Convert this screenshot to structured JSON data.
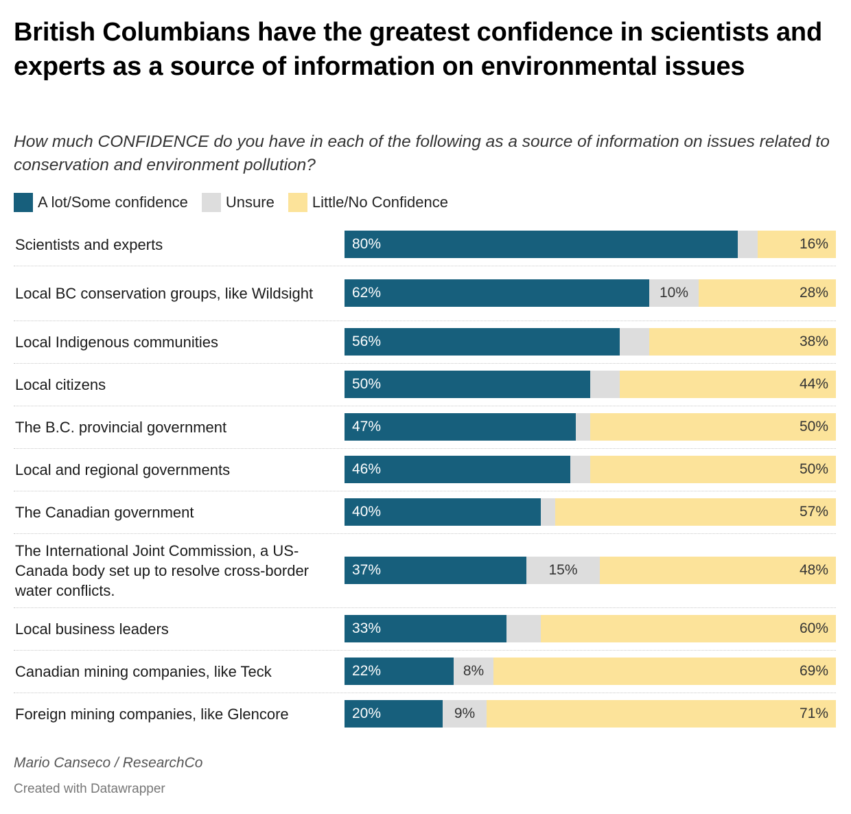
{
  "title": "British Columbians have the greatest confidence in scientists and experts as a source of information on environmental issues",
  "subtitle": "How much CONFIDENCE do you have in each of the following as a source of information on issues related to conservation and environment pollution?",
  "colors": {
    "confidence": "#175f7c",
    "unsure": "#dddddd",
    "no_confidence": "#fce39a"
  },
  "legend": [
    {
      "label": "A lot/Some confidence",
      "color": "#175f7c"
    },
    {
      "label": "Unsure",
      "color": "#dddddd"
    },
    {
      "label": "Little/No Confidence",
      "color": "#fce39a"
    }
  ],
  "source": "Mario Canseco / ResearchCo",
  "credit": "Created with Datawrapper",
  "chart_data": {
    "type": "bar",
    "orientation": "horizontal",
    "stacked": true,
    "xlim": [
      0,
      100
    ],
    "categories": [
      "Scientists and experts",
      "Local BC conservation groups, like Wildsight",
      "Local Indigenous communities",
      "Local citizens",
      "The B.C. provincial government",
      "Local and regional governments",
      "The Canadian government",
      "The International Joint Commission, a US-Canada body set up to resolve cross-border water conflicts.",
      "Local business leaders",
      "Canadian mining companies, like Teck",
      "Foreign mining companies, like Glencore"
    ],
    "series": [
      {
        "name": "A lot/Some confidence",
        "values": [
          80,
          62,
          56,
          50,
          47,
          46,
          40,
          37,
          33,
          22,
          20
        ],
        "labels": [
          "80%",
          "62%",
          "56%",
          "50%",
          "47%",
          "46%",
          "40%",
          "37%",
          "33%",
          "22%",
          "20%"
        ]
      },
      {
        "name": "Unsure",
        "values": [
          4,
          10,
          6,
          6,
          3,
          4,
          3,
          15,
          7,
          8,
          9
        ],
        "labels": [
          "",
          "10%",
          "",
          "",
          "",
          "",
          "",
          "15%",
          "",
          "8%",
          "9%"
        ]
      },
      {
        "name": "Little/No Confidence",
        "values": [
          16,
          28,
          38,
          44,
          50,
          50,
          57,
          48,
          60,
          69,
          71
        ],
        "labels": [
          "16%",
          "28%",
          "38%",
          "44%",
          "50%",
          "50%",
          "57%",
          "48%",
          "60%",
          "69%",
          "71%"
        ]
      }
    ],
    "legend_position": "top-left",
    "grid": false
  }
}
